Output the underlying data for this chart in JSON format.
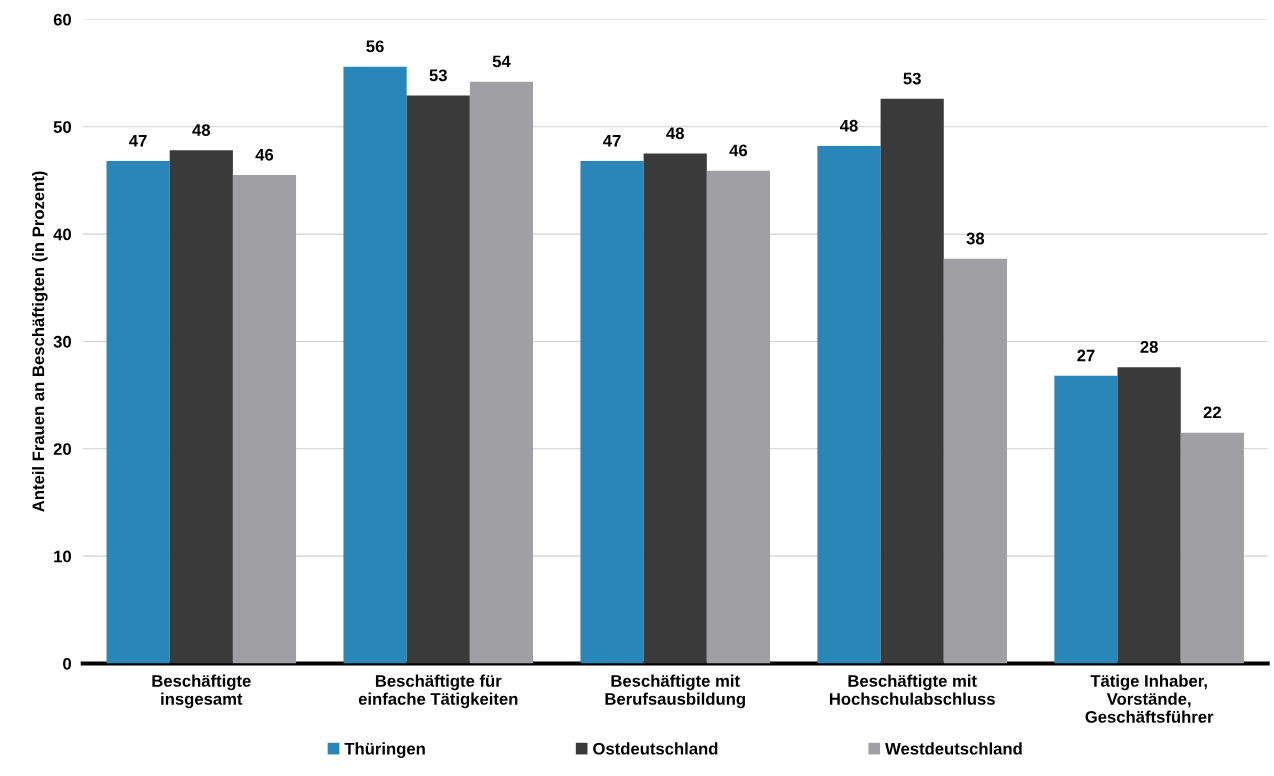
{
  "chart_data": {
    "type": "bar",
    "ylabel": "Anteil Frauen an Beschäftigten (in Prozent)",
    "categories": [
      "Beschäftigte\ninsgesamt",
      "Beschäftigte für\neinfache Tätigkeiten",
      "Beschäftigte mit\nBerufsausbildung",
      "Beschäftigte mit\nHochschulabschluss",
      "Tätige Inhaber,\nVorstände,\nGeschäftsführer"
    ],
    "series": [
      {
        "name": "Thüringen",
        "color": "#2986b8",
        "values": [
          46.8,
          55.6,
          46.8,
          48.2,
          26.8
        ],
        "value_labels": [
          "47",
          "56",
          "47",
          "48",
          "27"
        ]
      },
      {
        "name": "Ostdeutschland",
        "color": "#3a3a3a",
        "values": [
          47.8,
          52.9,
          47.5,
          52.6,
          27.6
        ],
        "value_labels": [
          "48",
          "53",
          "48",
          "53",
          "28"
        ]
      },
      {
        "name": "Westdeutschland",
        "color": "#a0a0a4",
        "values": [
          45.5,
          54.2,
          45.9,
          37.7,
          21.5
        ],
        "value_labels": [
          "46",
          "54",
          "46",
          "38",
          "22"
        ]
      }
    ],
    "ylim": [
      0,
      60
    ],
    "yticks": [
      0,
      10,
      20,
      30,
      40,
      50,
      60
    ],
    "grid": "y",
    "legend": "bottom"
  }
}
